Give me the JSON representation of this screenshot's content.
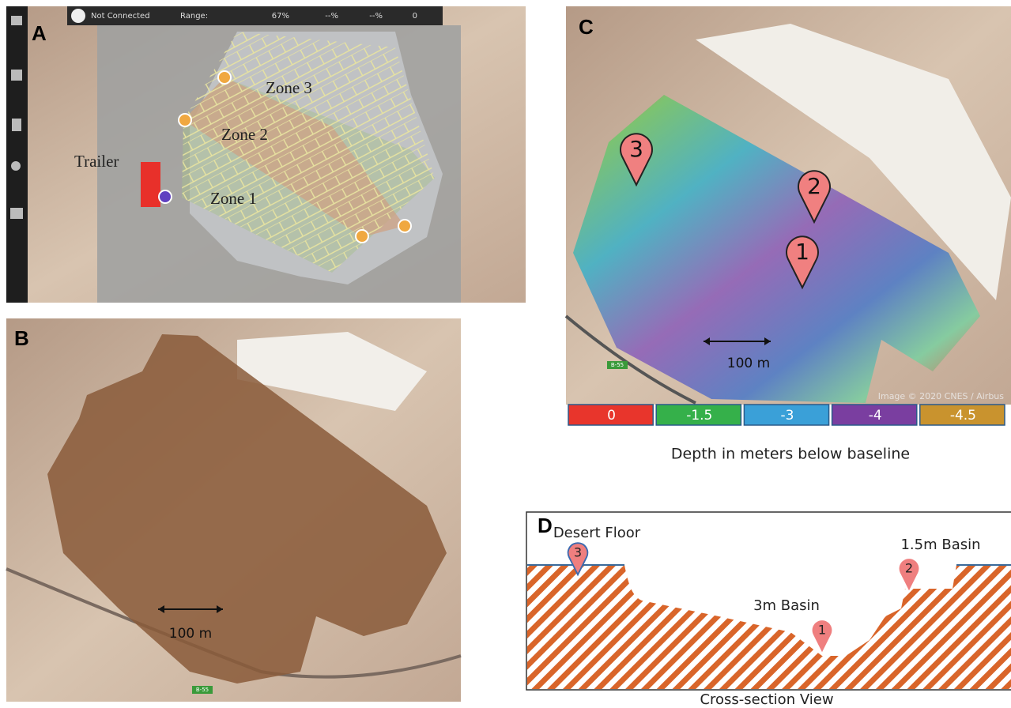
{
  "panel_a": {
    "label": "A",
    "status": {
      "connection": "Not Connected",
      "range": "Range:",
      "battery": "67%",
      "remote": "--%",
      "signal": "--%",
      "satellites": "0"
    },
    "trailer": "Trailer",
    "zones": [
      "Zone 1",
      "Zone 2",
      "Zone 3"
    ]
  },
  "panel_b": {
    "label": "B",
    "scale": "100 m",
    "road_sign": "B-55"
  },
  "panel_c": {
    "label": "C",
    "markers": [
      "1",
      "2",
      "3"
    ],
    "scale": "100 m",
    "road_sign": "B-55",
    "attribution": "Image © 2020 CNES / Airbus",
    "legend": [
      {
        "label": "0",
        "color": "#e8352c"
      },
      {
        "label": "-1.5",
        "color": "#35b04a"
      },
      {
        "label": "-3",
        "color": "#3aa0d8"
      },
      {
        "label": "-4",
        "color": "#7a3ea0"
      },
      {
        "label": "-4.5",
        "color": "#c9932e"
      }
    ],
    "legend_title": "Depth in meters below baseline"
  },
  "panel_d": {
    "label": "D",
    "title": "Cross-section View",
    "annotations": [
      "Desert Floor",
      "3m Basin",
      "1.5m Basin"
    ],
    "markers": [
      "1",
      "2",
      "3"
    ]
  }
}
